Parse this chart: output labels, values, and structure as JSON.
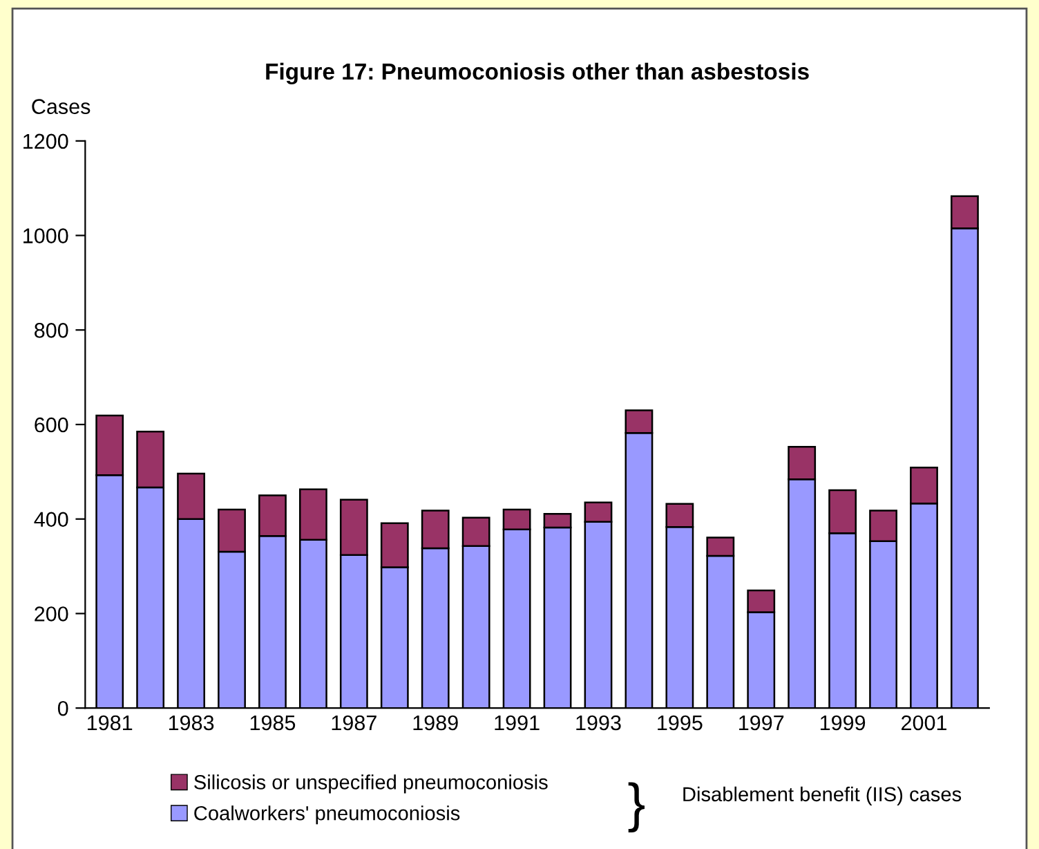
{
  "chart_data": {
    "type": "bar",
    "title": "Figure 17: Pneumoconiosis other than asbestosis",
    "ylabel": "Cases",
    "categories": [
      "1981",
      null,
      "1983",
      null,
      "1985",
      null,
      "1987",
      null,
      "1989",
      null,
      "1991",
      null,
      "1993",
      null,
      "1995",
      null,
      "1997",
      null,
      "1999",
      null,
      "2001",
      null
    ],
    "series": [
      {
        "name": "Coalworkers' pneumoconiosis",
        "color": "#9999ff",
        "values": [
          493,
          467,
          400,
          331,
          364,
          356,
          324,
          298,
          338,
          343,
          378,
          382,
          394,
          582,
          383,
          322,
          203,
          484,
          370,
          353,
          433,
          1015
        ]
      },
      {
        "name": "Silicosis or unspecified pneumoconiosis",
        "color": "#993366",
        "values": [
          126,
          118,
          96,
          89,
          86,
          107,
          117,
          93,
          80,
          60,
          42,
          29,
          41,
          48,
          49,
          39,
          46,
          69,
          91,
          65,
          76,
          68
        ]
      }
    ],
    "stacked": true,
    "ylim": [
      0,
      1200
    ],
    "yticks": [
      0,
      200,
      400,
      600,
      800,
      1000,
      1200
    ],
    "grid": false,
    "legend": "bottom",
    "annotations": [
      "}",
      "Disablement benefit (IIS) cases"
    ]
  }
}
